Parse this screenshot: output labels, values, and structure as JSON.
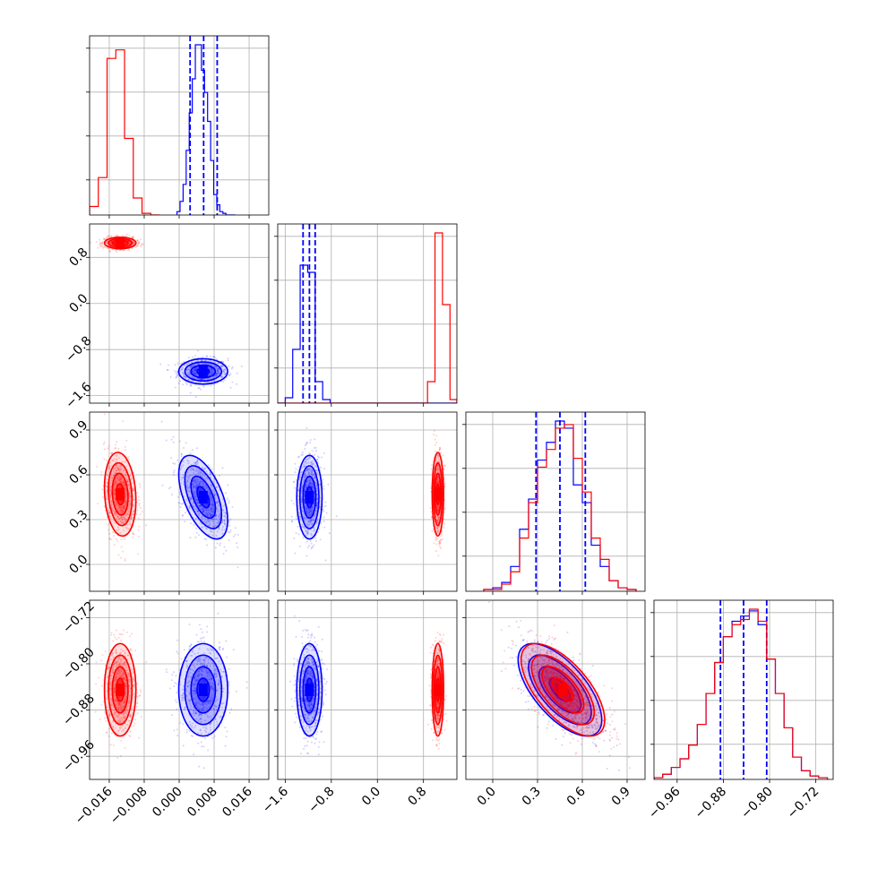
{
  "chart_data": {
    "type": "corner",
    "grid": true,
    "colors": {
      "blue": "#0000ff",
      "red": "#ff0000"
    },
    "parameters": [
      {
        "ticks": [
          "−0.016",
          "−0.008",
          "0.000",
          "0.008",
          "0.016"
        ],
        "tick_values": [
          -0.016,
          -0.008,
          0.0,
          0.008,
          0.016
        ],
        "range": [
          -0.0205,
          0.0205
        ]
      },
      {
        "ticks": [
          "−1.6",
          "−0.8",
          "0.0",
          "0.8"
        ],
        "tick_values": [
          -1.6,
          -0.8,
          0.0,
          0.8
        ],
        "range": [
          -1.73,
          1.38
        ]
      },
      {
        "ticks": [
          "0.0",
          "0.3",
          "0.6",
          "0.9"
        ],
        "tick_values": [
          0.0,
          0.3,
          0.6,
          0.9
        ],
        "range": [
          -0.18,
          1.02
        ]
      },
      {
        "ticks": [
          "−0.96",
          "−0.88",
          "−0.80",
          "−0.72"
        ],
        "tick_values": [
          -0.96,
          -0.88,
          -0.8,
          -0.72
        ],
        "range": [
          -1.0,
          -0.69
        ]
      }
    ],
    "series": [
      {
        "color": "blue",
        "mean": [
          0.0055,
          -1.18,
          0.45,
          -0.845
        ],
        "sd": [
          0.0028,
          0.11,
          0.14,
          0.04
        ],
        "corr": {
          "0-2": -0.55,
          "2-3": -0.65
        },
        "quantile_lines": [
          [
            0.0025,
            0.0056,
            0.0087
          ],
          [
            -1.29,
            -1.18,
            -1.08
          ],
          [
            0.29,
            0.45,
            0.62
          ],
          [
            -0.885,
            -0.845,
            -0.805
          ]
        ],
        "histograms": [
          {
            "edges": [
              -0.0005,
              0.0002,
              0.0009,
              0.0016,
              0.0023,
              0.003,
              0.0037,
              0.0044,
              0.0051,
              0.0058,
              0.0065,
              0.0072,
              0.0079,
              0.0086,
              0.0093,
              0.01,
              0.0107,
              0.0114,
              0.0121,
              0.0128
            ],
            "counts": [
              0.02,
              0.08,
              0.18,
              0.38,
              0.6,
              0.8,
              1.0,
              1.0,
              0.85,
              0.72,
              0.55,
              0.32,
              0.12,
              0.06,
              0.02,
              0.01,
              0.0,
              0.0,
              0.0
            ]
          },
          {
            "edges": [
              -1.73,
              -1.6,
              -1.47,
              -1.34,
              -1.21,
              -1.08,
              -0.95,
              -0.82,
              -0.69,
              -0.56,
              -0.43,
              -0.3,
              -0.17,
              -0.04,
              0.09,
              0.22,
              0.35,
              0.48,
              0.61,
              0.74,
              0.87,
              1.0,
              1.13,
              1.26,
              1.38
            ],
            "counts": [
              0.0,
              0.03,
              0.3,
              0.77,
              0.73,
              0.12,
              0.02,
              0.0,
              0.0,
              0.0,
              0.0,
              0.0,
              0.0,
              0.0,
              0.0,
              0.0,
              0.0,
              0.0,
              0.0,
              0.0,
              0.0,
              0.0,
              0.0,
              0.0
            ]
          },
          {
            "edges": [
              -0.06,
              0.0,
              0.06,
              0.12,
              0.18,
              0.24,
              0.3,
              0.36,
              0.42,
              0.48,
              0.54,
              0.6,
              0.66,
              0.72,
              0.78,
              0.84,
              0.9,
              0.96
            ],
            "counts": [
              0.01,
              0.02,
              0.05,
              0.14,
              0.35,
              0.52,
              0.74,
              0.84,
              0.96,
              0.92,
              0.6,
              0.5,
              0.26,
              0.14,
              0.06,
              0.02,
              0.01
            ]
          },
          {
            "edges": [
              -1.0,
              -0.985,
              -0.97,
              -0.955,
              -0.94,
              -0.925,
              -0.91,
              -0.895,
              -0.88,
              -0.865,
              -0.85,
              -0.835,
              -0.82,
              -0.805,
              -0.79,
              -0.775,
              -0.76,
              -0.745,
              -0.73,
              -0.715,
              -0.7
            ],
            "counts": [
              0.01,
              0.03,
              0.07,
              0.12,
              0.2,
              0.32,
              0.5,
              0.68,
              0.83,
              0.92,
              0.95,
              0.98,
              0.9,
              0.7,
              0.5,
              0.3,
              0.13,
              0.05,
              0.02,
              0.01
            ]
          }
        ]
      },
      {
        "color": "red",
        "mean": [
          -0.0135,
          1.05,
          0.47,
          -0.845
        ],
        "sd": [
          0.0018,
          0.05,
          0.14,
          0.04
        ],
        "corr": {
          "0-2": -0.15,
          "2-3": -0.65
        },
        "quantile_lines": [],
        "histograms": [
          {
            "edges": [
              -0.0205,
              -0.0185,
              -0.0165,
              -0.0145,
              -0.0125,
              -0.0105,
              -0.0085,
              -0.0065,
              -0.0045
            ],
            "counts": [
              0.05,
              0.22,
              0.92,
              0.97,
              0.45,
              0.1,
              0.01,
              0.0
            ]
          },
          {
            "edges": [
              -1.73,
              -1.6,
              -1.47,
              -1.34,
              -1.21,
              -1.08,
              -0.95,
              -0.82,
              -0.69,
              -0.56,
              -0.43,
              -0.3,
              -0.17,
              -0.04,
              0.09,
              0.22,
              0.35,
              0.48,
              0.61,
              0.74,
              0.87,
              1.0,
              1.13,
              1.26,
              1.38
            ],
            "counts": [
              0.0,
              0.0,
              0.0,
              0.0,
              0.0,
              0.0,
              0.0,
              0.0,
              0.0,
              0.0,
              0.0,
              0.0,
              0.0,
              0.0,
              0.0,
              0.0,
              0.0,
              0.0,
              0.0,
              0.0,
              0.12,
              0.95,
              0.55,
              0.02
            ]
          },
          {
            "edges": [
              -0.06,
              0.0,
              0.06,
              0.12,
              0.18,
              0.24,
              0.3,
              0.36,
              0.42,
              0.48,
              0.54,
              0.6,
              0.66,
              0.72,
              0.78,
              0.84,
              0.9,
              0.96
            ],
            "counts": [
              0.01,
              0.01,
              0.04,
              0.11,
              0.3,
              0.5,
              0.7,
              0.8,
              0.92,
              0.94,
              0.75,
              0.56,
              0.3,
              0.18,
              0.06,
              0.02,
              0.01
            ]
          },
          {
            "edges": [
              -1.0,
              -0.985,
              -0.97,
              -0.955,
              -0.94,
              -0.925,
              -0.91,
              -0.895,
              -0.88,
              -0.865,
              -0.85,
              -0.835,
              -0.82,
              -0.805,
              -0.79,
              -0.775,
              -0.76,
              -0.745,
              -0.73,
              -0.715,
              -0.7
            ],
            "counts": [
              0.01,
              0.03,
              0.07,
              0.12,
              0.2,
              0.32,
              0.5,
              0.68,
              0.83,
              0.9,
              0.93,
              0.99,
              0.92,
              0.7,
              0.5,
              0.3,
              0.13,
              0.05,
              0.02,
              0.01
            ]
          }
        ]
      }
    ]
  }
}
